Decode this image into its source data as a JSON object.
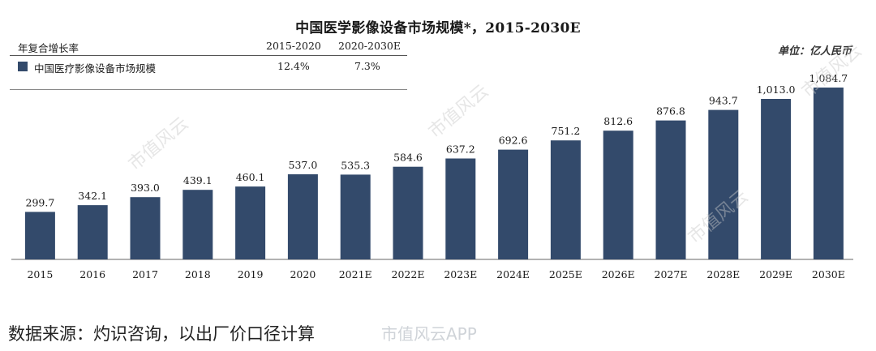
{
  "title": "中国医学影像设备市场规模*，2015-2030E",
  "unit": "单位：亿人民币",
  "cagr_table": {
    "header_label": "年复合增长率",
    "period1": "2015-2020",
    "period2": "2020-2030E",
    "row_label": "中国医疗影像设备市场规模",
    "cagr1": "12.4%",
    "cagr2": "7.3%"
  },
  "source": "数据来源：灼识咨询，以出厂价口径计算",
  "watermark": "市值风云",
  "watermark_app": "市值风云APP",
  "colors": {
    "bar": "#334a6b",
    "axis": "#666666"
  },
  "chart_data": {
    "type": "bar",
    "title": "中国医学影像设备市场规模*，2015-2030E",
    "categories": [
      "2015",
      "2016",
      "2017",
      "2018",
      "2019",
      "2020",
      "2021E",
      "2022E",
      "2023E",
      "2024E",
      "2025E",
      "2026E",
      "2027E",
      "2028E",
      "2029E",
      "2030E"
    ],
    "series": [
      {
        "name": "中国医疗影像设备市场规模",
        "values": [
          299.7,
          342.1,
          393.0,
          439.1,
          460.1,
          537.0,
          535.3,
          584.6,
          637.2,
          692.6,
          751.2,
          812.6,
          876.8,
          943.7,
          1013.0,
          1084.7
        ],
        "labels": [
          "299.7",
          "342.1",
          "393.0",
          "439.1",
          "460.1",
          "537.0",
          "535.3",
          "584.6",
          "637.2",
          "692.6",
          "751.2",
          "812.6",
          "876.8",
          "943.7",
          "1,013.0",
          "1,084.7"
        ]
      }
    ],
    "ylabel": "",
    "xlabel": "",
    "grid": false,
    "legend": "top-left"
  }
}
